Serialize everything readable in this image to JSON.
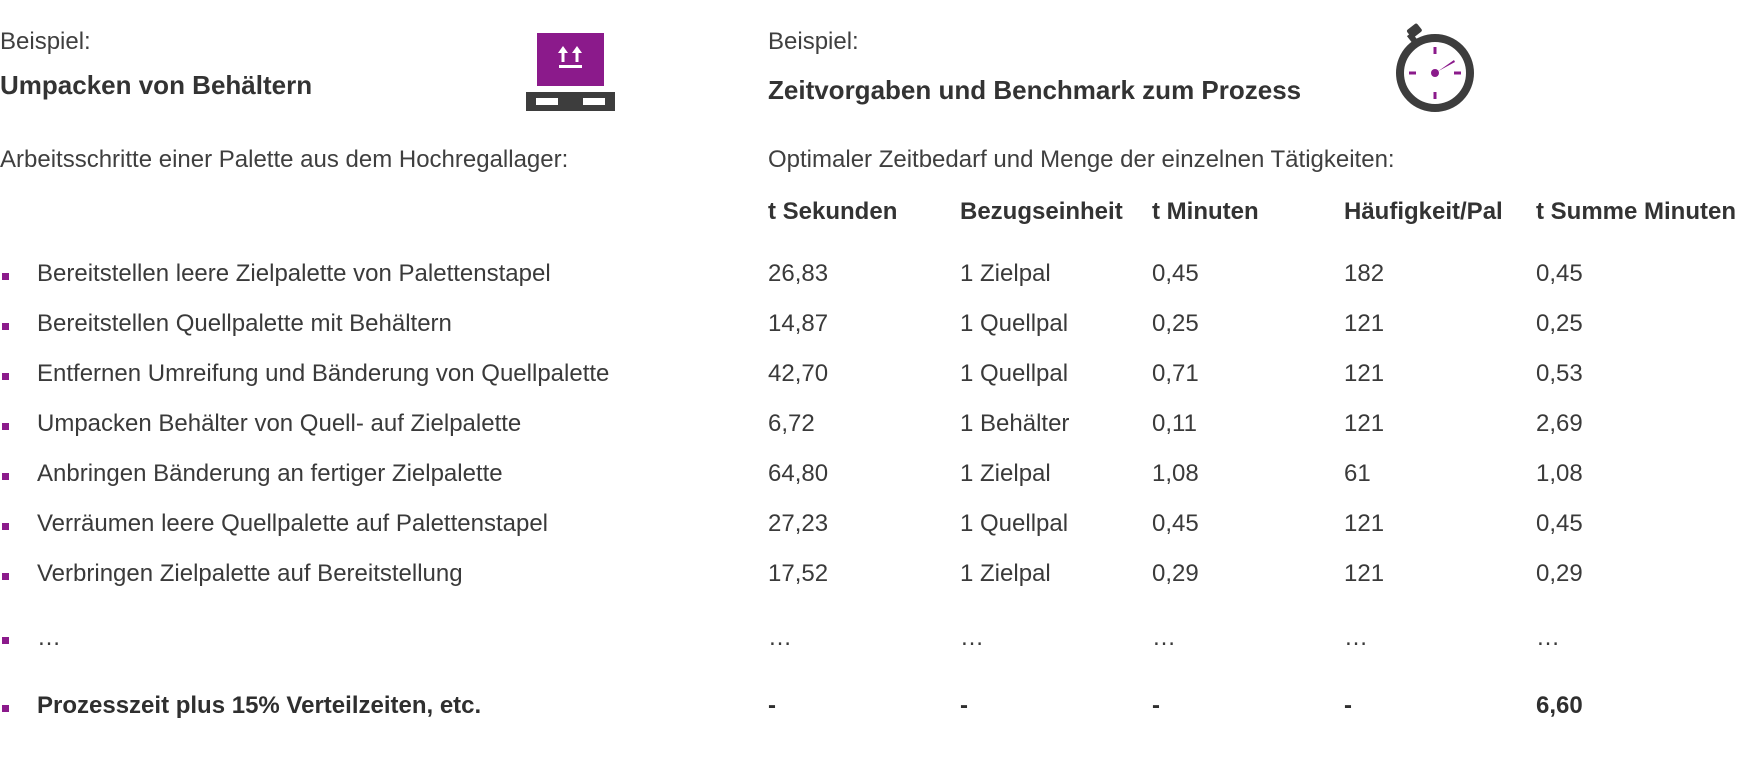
{
  "left": {
    "label": "Beispiel:",
    "title": "Umpacken von Behältern",
    "intro": "Arbeitsschritte einer Palette aus dem Hochregallager:",
    "icon": "pallet-box-icon"
  },
  "right": {
    "label": "Beispiel:",
    "title": "Zeitvorgaben und Benchmark zum Prozess",
    "intro": "Optimaler Zeitbedarf und Menge der einzelnen Tätigkeiten:",
    "icon": "stopwatch-icon"
  },
  "colors": {
    "accent": "#8b1a8b",
    "icon_dark": "#3d3d3d",
    "text": "#3a3a3a"
  },
  "headers": [
    "t Sekunden",
    "Bezugseinheit",
    "t Minuten",
    "Häufigkeit/Pal",
    "t Summe Minuten"
  ],
  "rows": [
    {
      "step": "Bereitstellen leere Zielpalette von Palettenstapel",
      "cells": [
        "26,83",
        "1 Zielpal",
        "0,45",
        "182",
        "0,45"
      ]
    },
    {
      "step": "Bereitstellen Quellpalette mit Behältern",
      "cells": [
        "14,87",
        "1 Quellpal",
        "0,25",
        "121",
        "0,25"
      ]
    },
    {
      "step": "Entfernen Umreifung und Bänderung von Quellpalette",
      "cells": [
        "42,70",
        "1 Quellpal",
        "0,71",
        "121",
        "0,53"
      ]
    },
    {
      "step": "Umpacken Behälter von Quell- auf Zielpalette",
      "cells": [
        "6,72",
        "1 Behälter",
        "0,11",
        "121",
        "2,69"
      ]
    },
    {
      "step": "Anbringen Bänderung an fertiger Zielpalette",
      "cells": [
        "64,80",
        "1 Zielpal",
        "1,08",
        "61",
        "1,08"
      ]
    },
    {
      "step": "Verräumen leere Quellpalette auf Palettenstapel",
      "cells": [
        "27,23",
        "1 Quellpal",
        "0,45",
        "121",
        "0,45"
      ]
    },
    {
      "step": "Verbringen Zielpalette auf Bereitstellung",
      "cells": [
        "17,52",
        "1 Zielpal",
        "0,29",
        "121",
        "0,29"
      ]
    },
    {
      "step": "…",
      "cells": [
        "…",
        "…",
        "…",
        "…",
        "…"
      ]
    }
  ],
  "total": {
    "step": "Prozesszeit plus 15% Verteilzeiten, etc.",
    "cells": [
      "-",
      "-",
      "-",
      "-",
      "6,60"
    ]
  }
}
